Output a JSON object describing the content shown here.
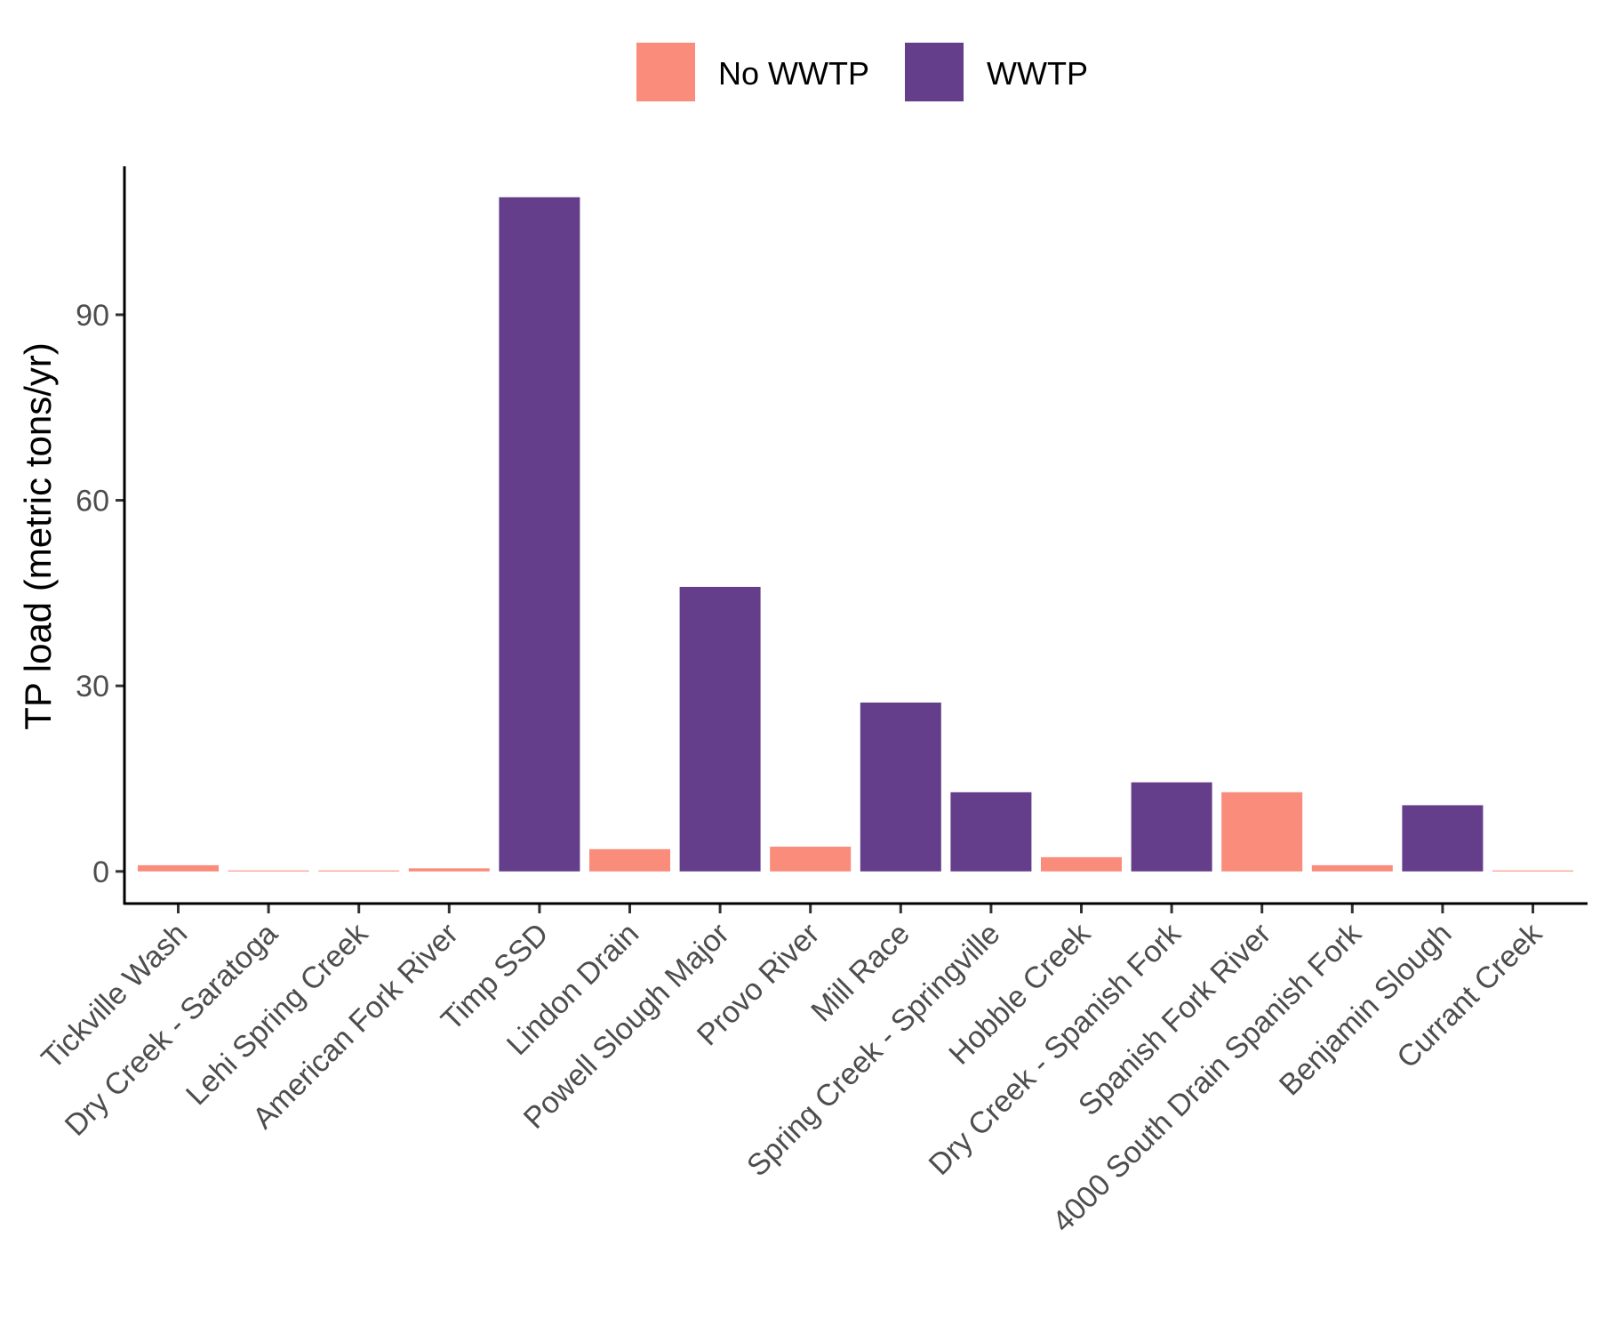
{
  "chart_data": {
    "type": "bar",
    "title": "",
    "xlabel": "",
    "ylabel": "TP load (metric tons/yr)",
    "ylim": [
      -5.2,
      114
    ],
    "yticks": [
      0,
      30,
      60,
      90
    ],
    "grid": false,
    "legend_position": "top",
    "legend": [
      {
        "label": "No WWTP",
        "color": "#fa8c7c"
      },
      {
        "label": "WWTP",
        "color": "#643e8a"
      }
    ],
    "categories": [
      "Tickville Wash",
      "Dry Creek - Saratoga",
      "Lehi Spring Creek",
      "American Fork River",
      "Timp SSD",
      "Lindon Drain",
      "Powell Slough Major",
      "Provo River",
      "Mill Race",
      "Spring Creek - Springville",
      "Hobble Creek",
      "Dry Creek - Spanish Fork",
      "Spanish Fork River",
      "4000 South Drain Spanish Fork",
      "Benjamin Slough",
      "Currant Creek"
    ],
    "values": [
      1.0,
      0.15,
      0.15,
      0.5,
      109,
      3.6,
      46,
      4.0,
      27.3,
      12.8,
      2.3,
      14.4,
      12.8,
      1.0,
      10.7,
      0.15
    ],
    "groups": [
      "No WWTP",
      "No WWTP",
      "No WWTP",
      "No WWTP",
      "WWTP",
      "No WWTP",
      "WWTP",
      "No WWTP",
      "WWTP",
      "WWTP",
      "No WWTP",
      "WWTP",
      "No WWTP",
      "No WWTP",
      "WWTP",
      "No WWTP"
    ]
  }
}
